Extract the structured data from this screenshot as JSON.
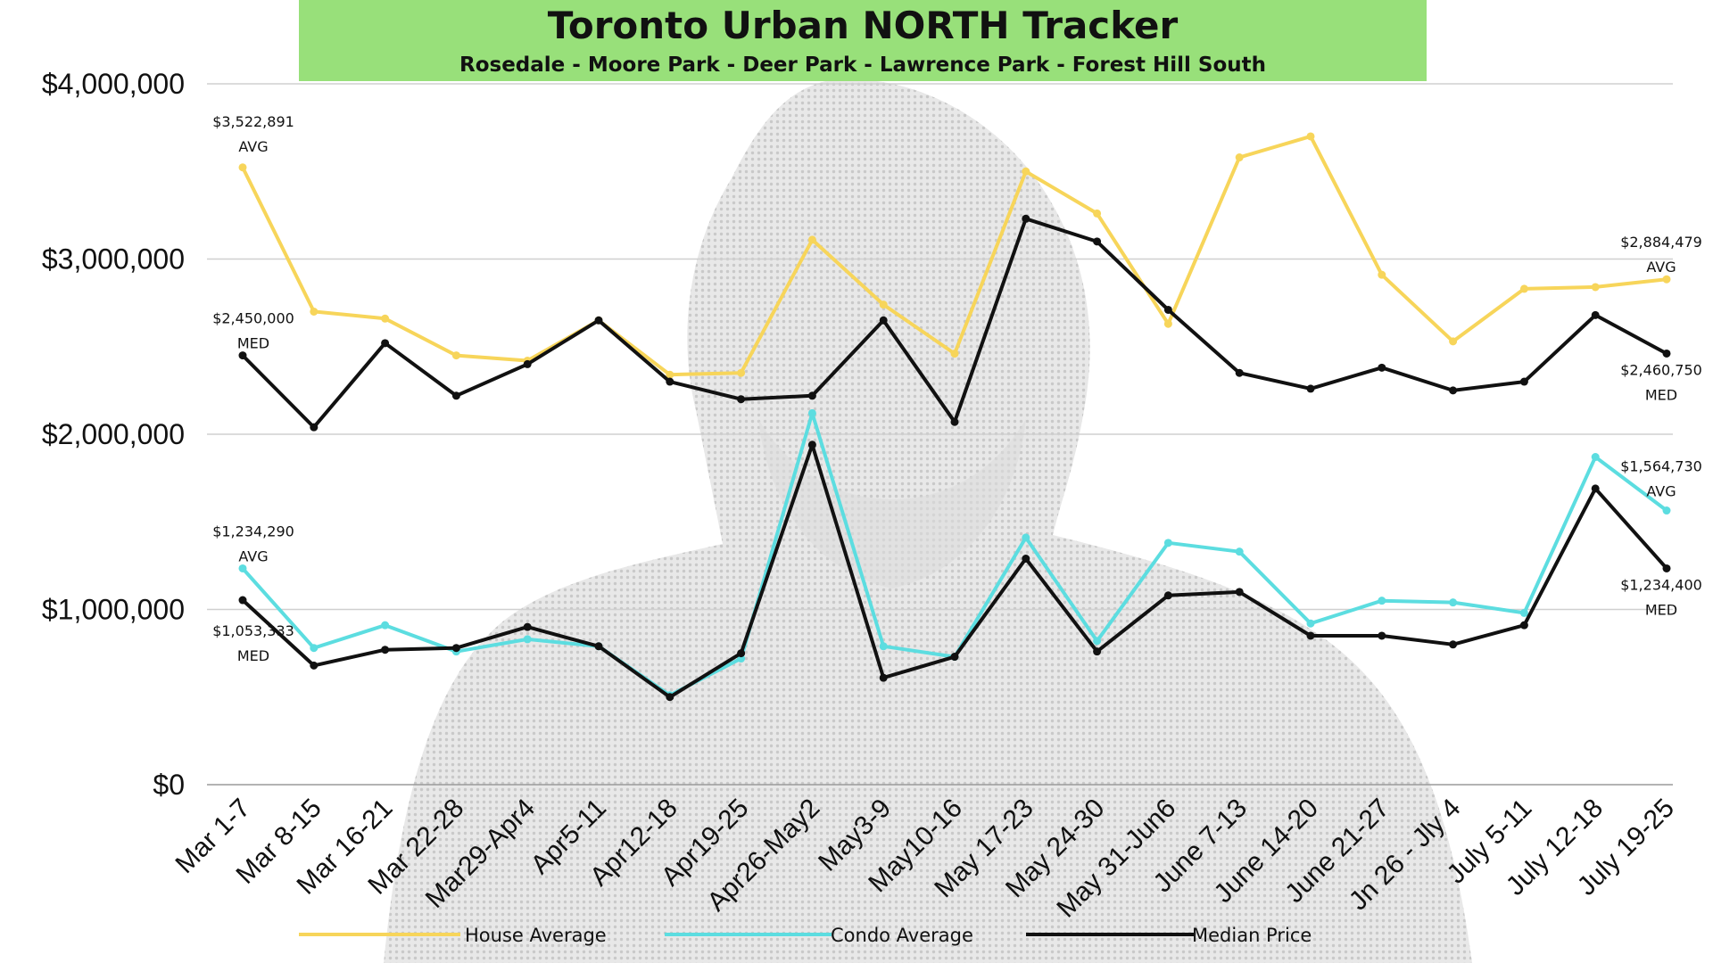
{
  "header": {
    "title": "Toronto Urban NORTH Tracker",
    "subtitle": "Rosedale - Moore Park - Deer Park - Lawrence Park - Forest Hill South"
  },
  "colors": {
    "title_bg": "#98e07a",
    "house_average": "#f7d55a",
    "condo_average": "#5cdde0",
    "median_price": "#111111",
    "grid": "#d0d0d0"
  },
  "chart_data": {
    "type": "line",
    "title": "Toronto Urban NORTH Tracker",
    "subtitle": "Rosedale - Moore Park - Deer Park - Lawrence Park - Forest Hill South",
    "xlabel": "",
    "ylabel": "",
    "ylim": [
      0,
      4000000
    ],
    "yticks": [
      0,
      1000000,
      2000000,
      3000000,
      4000000
    ],
    "ytick_labels": [
      "$0",
      "$1,000,000",
      "$2,000,000",
      "$3,000,000",
      "$4,000,000"
    ],
    "grid": true,
    "legend_position": "bottom",
    "categories": [
      "Mar 1-7",
      "Mar 8-15",
      "Mar 16-21",
      "Mar 22-28",
      "Mar29-Apr4",
      "Apr5-11",
      "Apr12-18",
      "Apr19-25",
      "Apr26-May2",
      "May3-9",
      "May10-16",
      "May 17-23",
      "May 24-30",
      "May 31-Jun6",
      "June 7-13",
      "June 14-20",
      "June 21-27",
      "Jn 26 - Jly 4",
      "July 5-11",
      "July 12-18",
      "July 19-25"
    ],
    "series": [
      {
        "name": "House Average",
        "color": "#f7d55a",
        "values": [
          3522891,
          2700000,
          2660000,
          2450000,
          2420000,
          2650000,
          2340000,
          2350000,
          3110000,
          2740000,
          2460000,
          3500000,
          3260000,
          2630000,
          3580000,
          3700000,
          2910000,
          2530000,
          2830000,
          2840000,
          2884479
        ]
      },
      {
        "name": "Condo Average",
        "color": "#5cdde0",
        "values": [
          1234290,
          780000,
          910000,
          760000,
          830000,
          790000,
          510000,
          720000,
          2120000,
          790000,
          730000,
          1410000,
          820000,
          1380000,
          1330000,
          920000,
          1050000,
          1040000,
          980000,
          1870000,
          1564730
        ]
      },
      {
        "name": "Median Price",
        "color": "#111111",
        "values": [
          2450000,
          2040000,
          2520000,
          2220000,
          2400000,
          2650000,
          2300000,
          2200000,
          2220000,
          2650000,
          2070000,
          3230000,
          3100000,
          2710000,
          2350000,
          2260000,
          2380000,
          2250000,
          2300000,
          2680000,
          2460750
        ]
      },
      {
        "name": "Median Price",
        "color": "#111111",
        "values": [
          1053333,
          680000,
          770000,
          780000,
          900000,
          790000,
          500000,
          750000,
          1940000,
          610000,
          730000,
          1290000,
          760000,
          1080000,
          1100000,
          850000,
          850000,
          800000,
          910000,
          1690000,
          1234400
        ]
      }
    ],
    "annotations": [
      {
        "line1": "$3,522,891",
        "line2": "AVG",
        "series": 0,
        "index": 0
      },
      {
        "line1": "$2,450,000",
        "line2": "MED",
        "series": 2,
        "index": 0
      },
      {
        "line1": "$1,234,290",
        "line2": "AVG",
        "series": 1,
        "index": 0
      },
      {
        "line1": "$1,053,333",
        "line2": "MED",
        "series": 3,
        "index": 0
      },
      {
        "line1": "$2,884,479",
        "line2": "AVG",
        "series": 0,
        "index": 20
      },
      {
        "line1": "$2,460,750",
        "line2": "MED",
        "series": 2,
        "index": 20
      },
      {
        "line1": "$1,564,730",
        "line2": "AVG",
        "series": 1,
        "index": 20
      },
      {
        "line1": "$1,234,400",
        "line2": "MED",
        "series": 3,
        "index": 20
      }
    ]
  },
  "legend": [
    {
      "label": "House Average",
      "color": "#f7d55a"
    },
    {
      "label": "Condo Average",
      "color": "#5cdde0"
    },
    {
      "label": "Median Price",
      "color": "#111111"
    }
  ]
}
